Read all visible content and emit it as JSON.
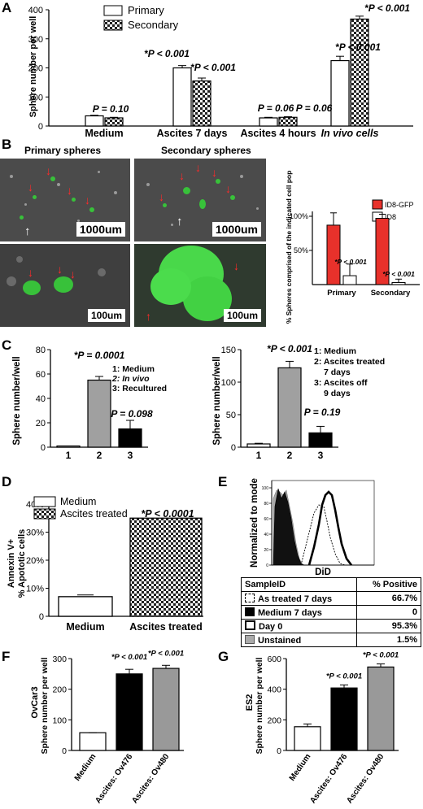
{
  "panels": {
    "a": {
      "letter": "A",
      "chart_data": {
        "type": "bar",
        "ylabel": "Sphere number per well",
        "ylim": [
          0,
          400
        ],
        "yticks": [
          "0",
          "100",
          "200",
          "300",
          "400"
        ],
        "categories": [
          "Medium",
          "Ascites 7 days",
          "Ascites 4 hours",
          "In vivo cells"
        ],
        "series": [
          {
            "name": "Primary",
            "values": [
              35,
              200,
              28,
              225
            ]
          },
          {
            "name": "Secondary",
            "values": [
              28,
              155,
              30,
              368
            ]
          }
        ],
        "annotations": [
          "P = 0.10",
          "*P < 0.001",
          "*P < 0.001",
          "P = 0.06",
          "P = 0.06",
          "*P < 0.001",
          "*P < 0.001"
        ],
        "legend_position": "top-left"
      }
    },
    "b": {
      "letter": "B",
      "primary_title": "Primary spheres",
      "secondary_title": "Secondary spheres",
      "scale_1000": "1000um",
      "scale_100": "100um",
      "chart_data": {
        "type": "bar",
        "ylabel": "% Spheres comprised of the indicated cell population",
        "ylim": [
          0,
          100
        ],
        "yticks": [
          "50%",
          "100%"
        ],
        "categories": [
          "Primary",
          "Secondary"
        ],
        "series": [
          {
            "name": "ID8-GFP",
            "values": [
              87,
              97
            ],
            "color": "#e8312b"
          },
          {
            "name": "ID8",
            "values": [
              13,
              3
            ],
            "color": "#ffffff"
          }
        ],
        "annotations": [
          "*P < 0.001",
          "*P < 0.001"
        ],
        "legend_position": "top-right"
      }
    },
    "c": {
      "letter": "C",
      "left": {
        "chart_data": {
          "type": "bar",
          "ylabel": "Sphere number/well",
          "ylim": [
            0,
            80
          ],
          "yticks": [
            "0",
            "20",
            "40",
            "60",
            "80"
          ],
          "categories": [
            "1",
            "2",
            "3"
          ],
          "values": [
            1,
            55,
            15
          ],
          "colors": [
            "#ffffff",
            "#a0a0a0",
            "#000000"
          ],
          "annotations": [
            "*P = 0.0001",
            "P = 0.098"
          ],
          "key": [
            "1: Medium",
            "2: In vivo",
            "3: Recultured"
          ]
        }
      },
      "right": {
        "chart_data": {
          "type": "bar",
          "ylabel": "Sphere number/well",
          "ylim": [
            0,
            150
          ],
          "yticks": [
            "0",
            "50",
            "100",
            "150"
          ],
          "categories": [
            "1",
            "2",
            "3"
          ],
          "values": [
            5,
            122,
            22
          ],
          "colors": [
            "#ffffff",
            "#a0a0a0",
            "#000000"
          ],
          "annotations": [
            "*P < 0.001",
            "P = 0.19"
          ],
          "key": [
            "1: Medium",
            "2: Ascites treated",
            "7 days",
            "3: Ascites off",
            "9 days"
          ]
        }
      }
    },
    "d": {
      "letter": "D",
      "chart_data": {
        "type": "bar",
        "ylabel": [
          "Annexin V+",
          "% Apototic cells"
        ],
        "ylim": [
          0,
          40
        ],
        "yticks": [
          "0",
          "10%",
          "20%",
          "30%",
          "40%"
        ],
        "categories": [
          "Medium",
          "Ascites treated"
        ],
        "values": [
          7,
          35
        ],
        "series_names": [
          "Medium",
          "Ascites treated"
        ],
        "annotations": [
          "*P < 0.0001"
        ],
        "legend_position": "top-left"
      }
    },
    "e": {
      "letter": "E",
      "ylabel": "Normalized to mode",
      "xlabel": "DiD",
      "yticks": [
        "0",
        "20",
        "40",
        "60",
        "80",
        "100"
      ],
      "table": {
        "header": [
          "SampleID",
          "% Positive"
        ],
        "rows": [
          {
            "name": "As treated 7 days",
            "value": "66.7%"
          },
          {
            "name": "Medium 7 days",
            "value": "0"
          },
          {
            "name": "Day 0",
            "value": "95.3%"
          },
          {
            "name": "Unstained",
            "value": "1.5%"
          }
        ]
      }
    },
    "f": {
      "letter": "F",
      "chart_data": {
        "type": "bar",
        "ylabel": [
          "OvCar3",
          "Sphere number per well"
        ],
        "ylim": [
          0,
          300
        ],
        "yticks": [
          "0",
          "100",
          "200",
          "300"
        ],
        "categories": [
          "Medium",
          "Ascites: Ov476",
          "Ascites: Ov480"
        ],
        "values": [
          58,
          250,
          268
        ],
        "colors": [
          "#ffffff",
          "#000000",
          "#999999"
        ],
        "annotations": [
          "*P < 0.001",
          "*P < 0.001"
        ]
      }
    },
    "g": {
      "letter": "G",
      "chart_data": {
        "type": "bar",
        "ylabel": [
          "ES2",
          "Sphere number per well"
        ],
        "ylim": [
          0,
          600
        ],
        "yticks": [
          "0",
          "200",
          "400",
          "600"
        ],
        "categories": [
          "Medium",
          "Ascites: Ov476",
          "Ascites: Ov480"
        ],
        "values": [
          155,
          408,
          545
        ],
        "colors": [
          "#ffffff",
          "#000000",
          "#999999"
        ],
        "annotations": [
          "*P < 0.001",
          "*P < 0.001"
        ]
      }
    }
  }
}
